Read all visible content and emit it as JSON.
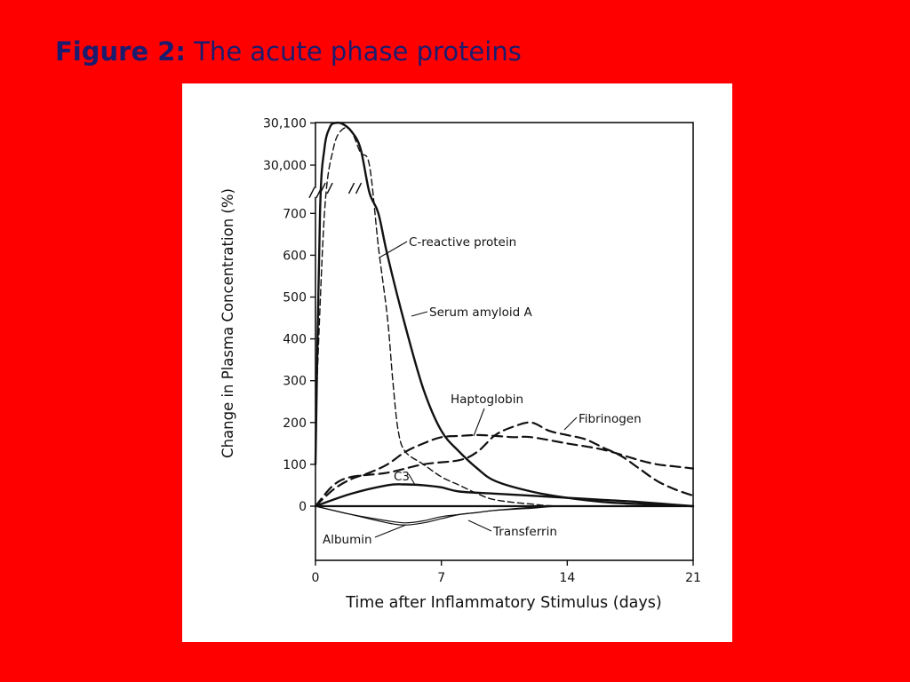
{
  "title": {
    "label": "Figure 2:",
    "text": "The acute phase proteins"
  },
  "colors": {
    "background": "#ff0000",
    "title": "#1c1c6e",
    "panel": "#ffffff",
    "ink": "#111111"
  },
  "chart_data": {
    "type": "line",
    "xlabel": "Time after Inflammatory Stimulus (days)",
    "ylabel": "Change in Plasma Concentration (%)",
    "xlim": [
      0,
      21
    ],
    "ylim": [
      -100,
      30100
    ],
    "y_axis_break": "between 700 and 30,000",
    "x_ticks": [
      "0",
      "7",
      "14",
      "21"
    ],
    "y_ticks": [
      "0",
      "100",
      "200",
      "300",
      "400",
      "500",
      "600",
      "700",
      "30,000",
      "30,100"
    ],
    "grid": false,
    "legend": "none (series labelled inline)",
    "series": [
      {
        "name": "C-reactive protein",
        "style": "solid-bold",
        "x": [
          0,
          0.25,
          0.5,
          0.8,
          1.1,
          1.5,
          2,
          2.5,
          3,
          3.5,
          4,
          5,
          6,
          7,
          8,
          9,
          10,
          12,
          14,
          16,
          18,
          21
        ],
        "y": [
          100,
          700,
          30040,
          30090,
          30100,
          30098,
          30080,
          30040,
          750,
          700,
          600,
          430,
          280,
          180,
          130,
          90,
          60,
          35,
          20,
          10,
          5,
          0
        ]
      },
      {
        "name": "Serum amyloid A",
        "style": "dashed",
        "x": [
          0,
          0.5,
          1,
          1.5,
          2,
          2.5,
          3,
          3.5,
          4,
          4.3,
          4.6,
          5,
          6,
          7,
          8,
          9,
          10,
          12,
          14,
          21
        ],
        "y": [
          200,
          700,
          30040,
          30085,
          30080,
          30030,
          30000,
          620,
          450,
          300,
          180,
          130,
          100,
          70,
          50,
          30,
          15,
          5,
          0,
          0
        ]
      },
      {
        "name": "Haptoglobin",
        "style": "dashed-bold",
        "x": [
          0,
          1,
          2,
          3,
          4,
          5,
          6,
          7,
          8,
          9,
          10,
          11,
          12,
          14,
          16,
          18,
          19,
          20,
          21
        ],
        "y": [
          0,
          40,
          65,
          80,
          100,
          130,
          150,
          165,
          168,
          170,
          168,
          165,
          165,
          150,
          135,
          110,
          100,
          95,
          90
        ]
      },
      {
        "name": "Fibrinogen",
        "style": "dashed-bold",
        "x": [
          0,
          1,
          2,
          4,
          6,
          8,
          9,
          10,
          11,
          12,
          13,
          14,
          15,
          16,
          17,
          18,
          19,
          20,
          21
        ],
        "y": [
          0,
          50,
          70,
          80,
          100,
          110,
          130,
          170,
          190,
          200,
          180,
          170,
          160,
          140,
          120,
          90,
          60,
          40,
          25
        ]
      },
      {
        "name": "C3",
        "style": "solid-bold",
        "x": [
          0,
          2,
          4,
          5,
          6,
          7,
          8,
          10,
          12,
          14,
          16,
          18,
          21
        ],
        "y": [
          0,
          30,
          50,
          52,
          50,
          45,
          35,
          30,
          25,
          20,
          15,
          10,
          0
        ]
      },
      {
        "name": "Transferrin",
        "style": "solid-thin",
        "x": [
          0,
          2,
          4,
          5,
          6,
          7,
          8,
          9,
          10,
          12,
          14,
          21
        ],
        "y": [
          0,
          -20,
          -35,
          -40,
          -35,
          -25,
          -20,
          -15,
          -10,
          -3,
          0,
          0
        ]
      },
      {
        "name": "Albumin",
        "style": "solid-thin",
        "x": [
          0,
          2,
          4,
          5,
          6,
          7,
          8,
          9,
          10,
          12,
          14,
          21
        ],
        "y": [
          0,
          -20,
          -40,
          -45,
          -40,
          -30,
          -20,
          -15,
          -10,
          -5,
          0,
          0
        ]
      }
    ],
    "annotations": [
      "C-reactive protein",
      "Serum amyloid A",
      "Haptoglobin",
      "Fibrinogen",
      "C3",
      "Transferrin",
      "Albumin"
    ]
  }
}
